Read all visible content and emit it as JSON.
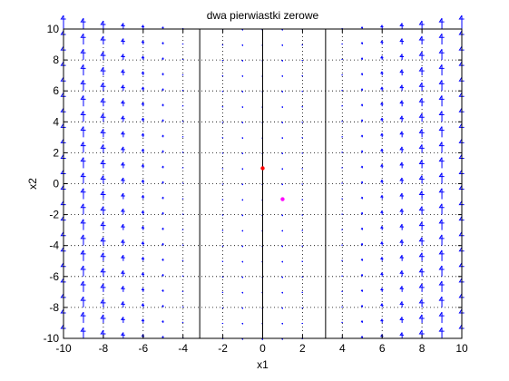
{
  "chart_data": {
    "type": "quiver",
    "title": "dwa pierwiastki zerowe",
    "xlabel": "x1",
    "ylabel": "x2",
    "xlim": [
      -10,
      10
    ],
    "ylim": [
      -10,
      10
    ],
    "xticks": [
      "-10",
      "-8",
      "-6",
      "-4",
      "-2",
      "0",
      "2",
      "4",
      "6",
      "8",
      "10"
    ],
    "yticks": [
      "-10",
      "-8",
      "-6",
      "-4",
      "-2",
      "0",
      "2",
      "4",
      "6",
      "8",
      "10"
    ],
    "grid": true,
    "vector_field": {
      "x_values": [
        -10,
        -9,
        -8,
        -7,
        -6,
        -5,
        -4,
        -3,
        -2,
        -1,
        0,
        1,
        2,
        3,
        4,
        5,
        6,
        7,
        8,
        9,
        10
      ],
      "y_values": [
        -10,
        -9,
        -8,
        -7,
        -6,
        -5,
        -4,
        -3,
        -2,
        -1,
        0,
        1,
        2,
        3,
        4,
        5,
        6,
        7,
        8,
        9,
        10
      ],
      "direction": "vertical",
      "magnitude_formula": "x1^2 - 10",
      "color": "#0000ff"
    },
    "nullclines_x": [
      -3.16,
      0,
      3.16
    ],
    "nullcline_color": "#000000",
    "points": [
      {
        "x": 0,
        "y": 1,
        "color": "#ff0000"
      },
      {
        "x": 1,
        "y": -1,
        "color": "#ff00ff"
      }
    ]
  }
}
